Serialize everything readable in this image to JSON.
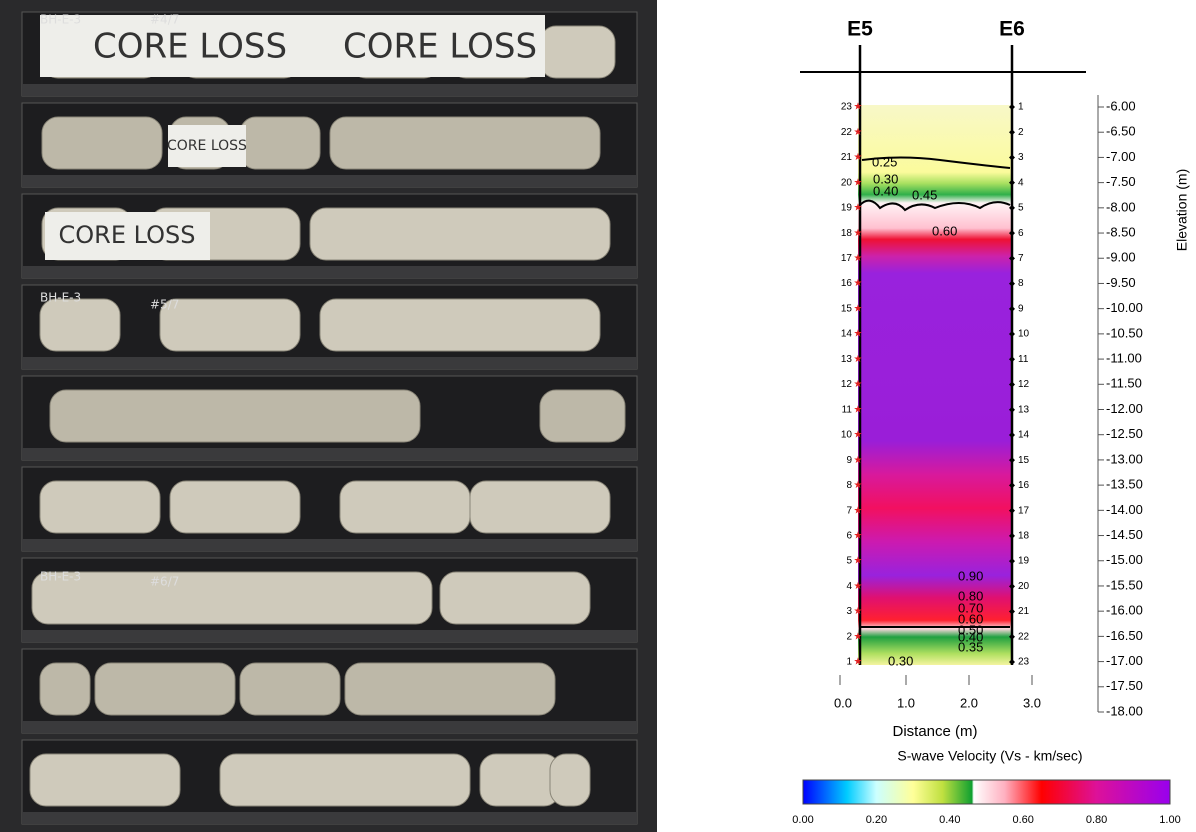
{
  "photo": {
    "labels": [
      {
        "text": "BH-E-3"
      },
      {
        "text": "#4/7"
      },
      {
        "text": "CORE LOSS"
      },
      {
        "text": "CORE LOSS"
      },
      {
        "text": "CORE LOSS"
      },
      {
        "text": "CORE LOSS"
      },
      {
        "text": "BH-E-3"
      },
      {
        "text": "#5/7"
      },
      {
        "text": "BH-E-3"
      },
      {
        "text": "#6/7"
      }
    ]
  },
  "profile": {
    "boreholes": [
      "E5",
      "E6"
    ],
    "elevation_label": "Elevation (m)",
    "elevation_ticks": [
      "-6.00",
      "-6.50",
      "-7.00",
      "-7.50",
      "-8.00",
      "-8.50",
      "-9.00",
      "-9.50",
      "-10.00",
      "-10.50",
      "-11.00",
      "-11.50",
      "-12.00",
      "-12.50",
      "-13.00",
      "-13.50",
      "-14.00",
      "-14.50",
      "-15.00",
      "-15.50",
      "-16.00",
      "-16.50",
      "-17.00",
      "-17.50",
      "-18.00"
    ],
    "distance_label": "Distance (m)",
    "distance_ticks": [
      "0.0",
      "1.0",
      "2.0",
      "3.0"
    ],
    "sensors_left": [
      "23",
      "22",
      "21",
      "20",
      "19",
      "18",
      "17",
      "16",
      "15",
      "14",
      "13",
      "12",
      "11",
      "10",
      "9",
      "8",
      "7",
      "6",
      "5",
      "4",
      "3",
      "2",
      "1"
    ],
    "sensors_right": [
      "1",
      "2",
      "3",
      "4",
      "5",
      "6",
      "7",
      "8",
      "9",
      "10",
      "11",
      "12",
      "13",
      "14",
      "15",
      "16",
      "17",
      "18",
      "19",
      "20",
      "21",
      "22",
      "23"
    ],
    "contour_labels": [
      "0.25",
      "0.30",
      "0.40",
      "0.45",
      "0.60",
      "0.90",
      "0.80",
      "0.70",
      "0.60",
      "0.50",
      "0.40",
      "0.35",
      "0.30"
    ],
    "colorbar_title": "S-wave Velocity (Vs - km/sec)",
    "colorbar_ticks": [
      "0.00",
      "0.20",
      "0.40",
      "0.60",
      "0.80",
      "1.00"
    ]
  }
}
